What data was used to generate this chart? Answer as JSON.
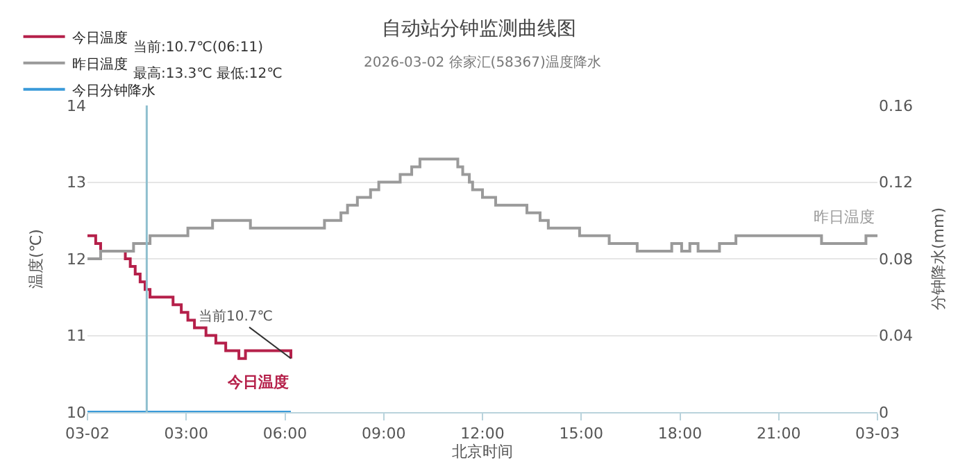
{
  "chart_data": {
    "type": "step",
    "title": "自动站分钟监测曲线图",
    "subtitle": "2026-03-02 徐家汇(58367)温度降水",
    "xlabel": "北京时间",
    "ylabel": "温度(℃)",
    "y2label": "分钟降水(mm)",
    "xlim": [
      0,
      24
    ],
    "xticks": [
      {
        "value": 0,
        "label": "03-02"
      },
      {
        "value": 3,
        "label": "03:00"
      },
      {
        "value": 6,
        "label": "06:00"
      },
      {
        "value": 9,
        "label": "09:00"
      },
      {
        "value": 12,
        "label": "12:00"
      },
      {
        "value": 15,
        "label": "15:00"
      },
      {
        "value": 18,
        "label": "18:00"
      },
      {
        "value": 21,
        "label": "21:00"
      },
      {
        "value": 24,
        "label": "03-03"
      }
    ],
    "ylim": [
      10,
      14
    ],
    "yticks": [
      10,
      11,
      12,
      13,
      14
    ],
    "y2lim": [
      0,
      0.16
    ],
    "y2ticks": [
      0,
      0.04,
      0.08,
      0.12,
      0.16
    ],
    "grid": "y",
    "legend": "top left",
    "series": [
      {
        "name": "今日温度",
        "color": "#b5204a",
        "x": [
          0,
          0.25,
          0.4,
          1.15,
          1.3,
          1.45,
          1.6,
          1.75,
          1.9,
          2.6,
          2.85,
          3.05,
          3.25,
          3.6,
          3.9,
          4.2,
          4.6,
          4.8,
          6.0,
          6.18
        ],
        "values": [
          12.3,
          12.2,
          12.1,
          12.0,
          11.9,
          11.8,
          11.7,
          11.6,
          11.5,
          11.4,
          11.3,
          11.2,
          11.1,
          11.0,
          10.9,
          10.8,
          10.7,
          10.8,
          10.8,
          10.7
        ]
      },
      {
        "name": "昨日温度",
        "color": "#9a9a9a",
        "x": [
          0,
          0.4,
          1.4,
          1.9,
          3.05,
          3.8,
          4.95,
          7.2,
          7.7,
          7.9,
          8.2,
          8.6,
          8.85,
          9.5,
          9.85,
          10.1,
          11.25,
          11.4,
          11.6,
          11.7,
          12.0,
          12.4,
          13.35,
          13.75,
          14.0,
          14.95,
          15.85,
          16.7,
          17.75,
          18.05,
          18.3,
          18.55,
          19.2,
          19.7,
          22.3,
          23.65,
          24
        ],
        "values": [
          12.0,
          12.1,
          12.2,
          12.3,
          12.4,
          12.5,
          12.4,
          12.5,
          12.6,
          12.7,
          12.8,
          12.9,
          13.0,
          13.1,
          13.2,
          13.3,
          13.2,
          13.1,
          13.0,
          12.9,
          12.8,
          12.7,
          12.6,
          12.5,
          12.4,
          12.3,
          12.2,
          12.1,
          12.2,
          12.1,
          12.2,
          12.1,
          12.2,
          12.3,
          12.2,
          12.3,
          12.3
        ]
      },
      {
        "name": "今日分钟降水",
        "color": "#3a9ad9",
        "type": "line",
        "axis": "y2",
        "x": [
          0,
          6.18
        ],
        "values": [
          0,
          0
        ]
      }
    ],
    "ref_lines": [
      {
        "axis": "x",
        "value": 1.8,
        "color": "#8fbfcf"
      }
    ],
    "annotations": [
      "当前:10.7℃(06:11)",
      "最高:13.3℃ 最低:12℃",
      {
        "text": "当前10.7℃",
        "x": 6.18,
        "y": 10.7
      },
      "今日温度",
      "昨日温度"
    ]
  }
}
